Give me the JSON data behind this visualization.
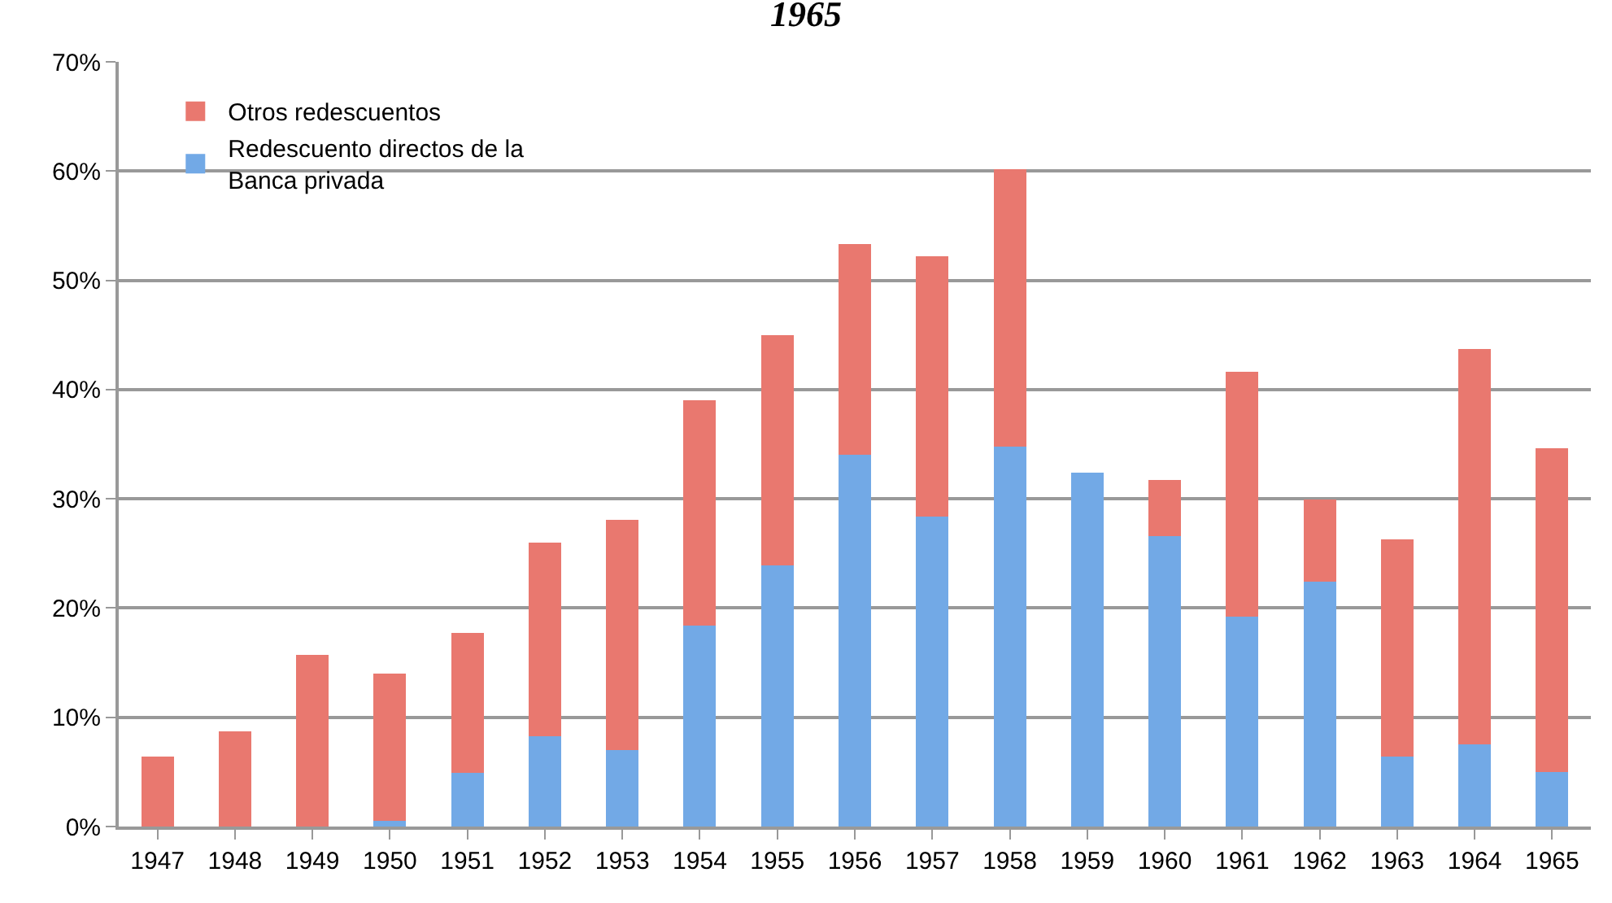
{
  "chart_data": {
    "type": "bar",
    "title": "1965",
    "stacked": true,
    "categories": [
      "1947",
      "1948",
      "1949",
      "1950",
      "1951",
      "1952",
      "1953",
      "1954",
      "1955",
      "1956",
      "1957",
      "1958",
      "1959",
      "1960",
      "1961",
      "1962",
      "1963",
      "1964",
      "1965"
    ],
    "series": [
      {
        "name": "Redescuento directos de la Banca privada",
        "color": "#72a9e6",
        "values": [
          0,
          0,
          0,
          0.5,
          4.9,
          8.3,
          7.0,
          18.4,
          23.9,
          34.0,
          28.4,
          34.8,
          32.4,
          26.6,
          19.2,
          22.4,
          6.4,
          7.5,
          5.0
        ]
      },
      {
        "name": "Otros redescuentos",
        "color": "#e9786f",
        "values": [
          6.4,
          8.7,
          15.7,
          13.5,
          12.8,
          17.7,
          21.1,
          20.6,
          21.1,
          19.3,
          23.8,
          25.4,
          0,
          5.1,
          22.4,
          7.5,
          19.9,
          36.2,
          29.6
        ]
      }
    ],
    "ylim": [
      0,
      70
    ],
    "yticks": [
      {
        "value": 0,
        "label": "0%"
      },
      {
        "value": 10,
        "label": "10%"
      },
      {
        "value": 20,
        "label": "20%"
      },
      {
        "value": 30,
        "label": "30%"
      },
      {
        "value": 40,
        "label": "40%"
      },
      {
        "value": 50,
        "label": "50%"
      },
      {
        "value": 60,
        "label": "60%"
      },
      {
        "value": 70,
        "label": "70%"
      }
    ],
    "grid": "y",
    "legend": "top left"
  }
}
